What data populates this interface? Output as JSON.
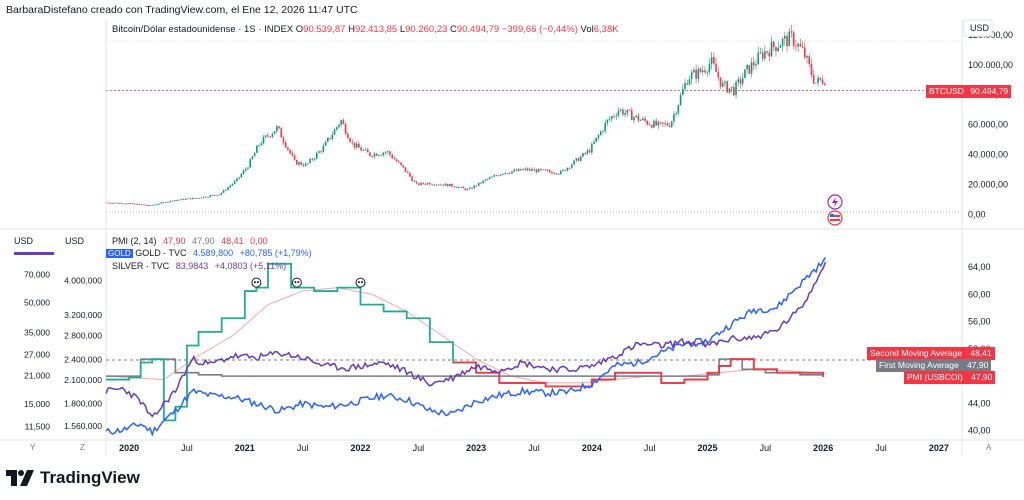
{
  "header": {
    "title": "BarbaraDistefano creado con TradingView.com, el Ene 12, 2026 11:47 UTC"
  },
  "branding": {
    "name": "TradingView"
  },
  "top_pane": {
    "legend": {
      "symbol": "Bitcoin/Dólar estadounidense · 1S · INDEX",
      "o_lbl": "O",
      "o": "90.539,87",
      "h_lbl": "H",
      "h": "92.413,85",
      "l_lbl": "L",
      "l": "90.260,23",
      "c_lbl": "C",
      "c": "90.494,79",
      "chg": "−399,66 (−0,44%)",
      "vol_lbl": "Vol",
      "vol": "6,38K"
    },
    "currency": "USD",
    "price_tag": {
      "symbol": "BTCUSD",
      "value": "90.494,79"
    }
  },
  "bottom_pane": {
    "left_currency_1": "USD",
    "left_currency_2": "USD",
    "legend": {
      "pmi": {
        "label": "PMI (2, 14)",
        "v1": "47,90",
        "v2": "47,90",
        "v3": "48,41",
        "v4": "0,00"
      },
      "gold": {
        "tag": "GOLD",
        "label": "GOLD · TVC",
        "value": "4.589,800",
        "chg": "+80,785 (+1,79%)"
      },
      "silver": {
        "label": "SILVER · TVC",
        "value": "83,9843",
        "chg": "+4,0803 (+5,11%)"
      }
    },
    "tags": [
      {
        "text": "Second Moving Average",
        "value": "48,41",
        "color": "#f23645"
      },
      {
        "text": "First Moving Average",
        "value": "47,90",
        "color": "#787b86"
      },
      {
        "text": "PMI (USBCOI)",
        "value": "47,90",
        "color": "#f23645"
      }
    ],
    "y_markers": {
      "left": "Y",
      "left2": "Z",
      "right": "A"
    }
  },
  "chart_data": [
    {
      "type": "candlestick",
      "title": "Bitcoin/Dólar estadounidense · 1S · INDEX",
      "y_ticks": [
        "120.000,00",
        "100.000,00",
        "80.000,00",
        "60.000,00",
        "40.000,00",
        "20.000,00",
        "0,00"
      ],
      "ylim": [
        -5000,
        130000
      ],
      "x_start": 2019.8,
      "x_end": 2027.2,
      "series": [
        {
          "name": "BTCUSD",
          "x": [
            2019.8,
            2020.0,
            2020.2,
            2020.4,
            2020.6,
            2020.8,
            2020.95,
            2021.05,
            2021.15,
            2021.3,
            2021.45,
            2021.55,
            2021.7,
            2021.85,
            2021.95,
            2022.1,
            2022.25,
            2022.4,
            2022.5,
            2022.6,
            2022.8,
            2022.95,
            2023.1,
            2023.25,
            2023.45,
            2023.6,
            2023.75,
            2023.9,
            2024.0,
            2024.15,
            2024.25,
            2024.45,
            2024.6,
            2024.7,
            2024.85,
            2024.95,
            2025.05,
            2025.15,
            2025.25,
            2025.35,
            2025.5,
            2025.65,
            2025.75,
            2025.85,
            2025.95,
            2026.03
          ],
          "values": [
            8000,
            7500,
            6000,
            9500,
            11000,
            13500,
            23000,
            33000,
            48000,
            58000,
            35000,
            33000,
            45000,
            63000,
            47000,
            40000,
            42000,
            30000,
            20000,
            21000,
            19500,
            16500,
            23000,
            28000,
            30000,
            29000,
            28000,
            37000,
            43000,
            62000,
            70000,
            63000,
            59000,
            61000,
            92000,
            95000,
            102000,
            86000,
            83000,
            95000,
            108000,
            115000,
            118000,
            108000,
            88000,
            90500
          ]
        }
      ]
    },
    {
      "type": "line",
      "title": "",
      "right_y_ticks": [
        "64,00",
        "60,00",
        "56,00",
        "52,00",
        "48,00",
        "44,00",
        "40,00"
      ],
      "right_ylim": [
        39.5,
        65.5
      ],
      "left_y_ticks_1": [
        "70,000",
        "50,000",
        "35,000",
        "27,000",
        "21,000",
        "15,000",
        "11,500"
      ],
      "left_y_ticks_2": [
        "4.000,000",
        "3.200,000",
        "2.800,000",
        "2.400,000",
        "2.100,000",
        "1.800,000",
        "1.560,000"
      ],
      "x_ticks": [
        "2020",
        "Jul",
        "2021",
        "Jul",
        "2022",
        "Jul",
        "2023",
        "Jul",
        "2024",
        "Jul",
        "2025",
        "Jul",
        "2026",
        "Jul",
        "2027"
      ],
      "x_tick_values": [
        2020.0,
        2020.5,
        2021.0,
        2021.5,
        2022.0,
        2022.5,
        2023.0,
        2023.5,
        2024.0,
        2024.5,
        2025.0,
        2025.5,
        2026.0,
        2026.5,
        2027.0
      ],
      "x_start": 2019.8,
      "x_end": 2027.2,
      "series": [
        {
          "name": "PMI (2, 14)",
          "color": "#f23645",
          "x": [
            2019.8,
            2020.0,
            2020.1,
            2020.2,
            2020.3,
            2020.4,
            2020.5,
            2020.6,
            2020.8,
            2021.0,
            2021.1,
            2021.2,
            2021.3,
            2021.4,
            2021.6,
            2021.8,
            2022.0,
            2022.2,
            2022.4,
            2022.6,
            2022.8,
            2023.0,
            2023.2,
            2023.4,
            2023.6,
            2023.8,
            2024.0,
            2024.2,
            2024.4,
            2024.6,
            2024.8,
            2025.0,
            2025.1,
            2025.2,
            2025.4,
            2025.6,
            2025.8,
            2026.0
          ],
          "values": [
            47.5,
            47.8,
            50.0,
            50.5,
            41.5,
            43.5,
            52.5,
            54.5,
            56.5,
            60.5,
            61.0,
            64.5,
            64.5,
            61.0,
            60.5,
            61.0,
            58.5,
            57.5,
            56.5,
            53.0,
            50.0,
            48.5,
            47.0,
            47.0,
            46.5,
            46.5,
            47.5,
            48.5,
            48.5,
            47.0,
            47.5,
            48.5,
            49.5,
            50.5,
            49.0,
            48.5,
            48.5,
            47.9
          ]
        },
        {
          "name": "Second Moving Average",
          "color": "#f7a9a8",
          "x": [
            2019.8,
            2020.3,
            2020.6,
            2020.9,
            2021.2,
            2021.5,
            2021.8,
            2022.1,
            2022.4,
            2022.7,
            2023.0,
            2023.3,
            2023.6,
            2023.9,
            2024.2,
            2024.5,
            2024.8,
            2025.1,
            2025.4,
            2025.7,
            2026.0
          ],
          "values": [
            48.0,
            47.5,
            51.0,
            54.0,
            58.5,
            60.5,
            61.0,
            60.0,
            57.5,
            54.0,
            50.5,
            48.0,
            47.0,
            47.0,
            47.5,
            48.0,
            48.0,
            48.5,
            49.0,
            48.8,
            48.4
          ]
        },
        {
          "name": "First Moving Average",
          "color": "#787b86",
          "x": [
            2019.8,
            2020.1,
            2020.4,
            2020.6,
            2020.8,
            2021.0,
            2022.8,
            2023.0,
            2023.5,
            2024.0,
            2024.5,
            2025.0,
            2025.1,
            2025.3,
            2025.5,
            2025.8,
            2026.0
          ],
          "values": [
            48.0,
            50.5,
            48.5,
            48.2,
            48.0,
            48.0,
            48.0,
            48.0,
            48.0,
            48.0,
            48.0,
            48.2,
            50.5,
            49.0,
            48.5,
            48.2,
            47.9
          ]
        },
        {
          "name": "GOLD · TVC",
          "color": "#2962ff",
          "x": [
            2019.8,
            2019.95,
            2020.1,
            2020.2,
            2020.4,
            2020.55,
            2020.7,
            2020.9,
            2021.1,
            2021.3,
            2021.5,
            2021.7,
            2021.9,
            2022.2,
            2022.4,
            2022.6,
            2022.8,
            2023.0,
            2023.2,
            2023.4,
            2023.6,
            2023.8,
            2024.0,
            2024.2,
            2024.4,
            2024.6,
            2024.8,
            2025.0,
            2025.2,
            2025.4,
            2025.6,
            2025.8,
            2025.9,
            2026.03
          ],
          "values": [
            1500,
            1520,
            1580,
            1500,
            1720,
            1950,
            1900,
            1880,
            1800,
            1720,
            1800,
            1760,
            1800,
            1900,
            1850,
            1720,
            1680,
            1830,
            1900,
            1950,
            1930,
            1940,
            2050,
            2300,
            2350,
            2500,
            2650,
            2700,
            3000,
            3300,
            3350,
            3900,
            4200,
            4589.8
          ]
        },
        {
          "name": "SILVER · TVC",
          "color": "#673ab7",
          "x": [
            2019.8,
            2019.95,
            2020.1,
            2020.2,
            2020.4,
            2020.55,
            2020.7,
            2020.9,
            2021.1,
            2021.3,
            2021.5,
            2021.7,
            2021.9,
            2022.2,
            2022.4,
            2022.6,
            2022.8,
            2023.0,
            2023.2,
            2023.4,
            2023.6,
            2023.8,
            2024.0,
            2024.2,
            2024.4,
            2024.6,
            2024.8,
            2025.0,
            2025.2,
            2025.4,
            2025.6,
            2025.8,
            2025.9,
            2026.03
          ],
          "values": [
            17.5,
            18.0,
            15.5,
            12.5,
            17.5,
            25.5,
            24.0,
            26.5,
            26.0,
            27.5,
            26.0,
            23.5,
            23.0,
            24.5,
            22.0,
            19.0,
            20.5,
            23.5,
            22.5,
            24.5,
            23.0,
            22.5,
            23.5,
            26.5,
            30.5,
            30.0,
            31.5,
            30.0,
            32.5,
            33.0,
            36.0,
            46.0,
            58.0,
            83.98
          ]
        }
      ]
    }
  ]
}
